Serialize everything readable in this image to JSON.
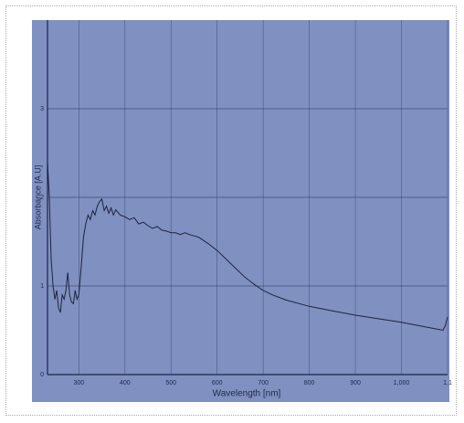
{
  "chart_data": {
    "type": "line",
    "xlabel": "Wavelength [nm]",
    "ylabel": "Absorbance [A.U]",
    "xlim": [
      232,
      1100
    ],
    "ylim": [
      0,
      4
    ],
    "xticks": [
      300,
      400,
      500,
      600,
      700,
      800,
      900,
      {
        "value": 1000,
        "label": "1,000"
      },
      {
        "value": 1100,
        "label": "1,1"
      }
    ],
    "yticks": [
      0,
      1,
      2,
      3
    ],
    "grid": true,
    "series": [
      {
        "name": "Absorbance",
        "color": "#1c2440",
        "x": [
          232,
          236,
          240,
          244,
          248,
          252,
          256,
          260,
          264,
          268,
          272,
          276,
          280,
          284,
          288,
          292,
          296,
          300,
          305,
          310,
          315,
          320,
          325,
          330,
          335,
          340,
          345,
          350,
          355,
          360,
          365,
          370,
          375,
          380,
          390,
          400,
          410,
          420,
          430,
          440,
          450,
          460,
          470,
          480,
          490,
          500,
          510,
          520,
          530,
          540,
          560,
          580,
          600,
          620,
          640,
          660,
          680,
          700,
          720,
          750,
          800,
          850,
          900,
          950,
          1000,
          1050,
          1090,
          1095,
          1100
        ],
        "values": [
          2.4,
          2.0,
          1.3,
          1.0,
          0.85,
          0.95,
          0.75,
          0.7,
          0.9,
          0.85,
          0.95,
          1.15,
          0.9,
          0.82,
          0.8,
          0.95,
          0.85,
          0.9,
          1.2,
          1.55,
          1.7,
          1.8,
          1.75,
          1.85,
          1.8,
          1.9,
          1.95,
          1.98,
          1.85,
          1.9,
          1.82,
          1.88,
          1.8,
          1.86,
          1.8,
          1.78,
          1.75,
          1.77,
          1.7,
          1.72,
          1.68,
          1.65,
          1.67,
          1.63,
          1.62,
          1.6,
          1.6,
          1.58,
          1.6,
          1.58,
          1.55,
          1.48,
          1.4,
          1.3,
          1.2,
          1.1,
          1.02,
          0.95,
          0.9,
          0.84,
          0.77,
          0.72,
          0.67,
          0.63,
          0.59,
          0.54,
          0.5,
          0.55,
          0.65
        ]
      }
    ]
  }
}
